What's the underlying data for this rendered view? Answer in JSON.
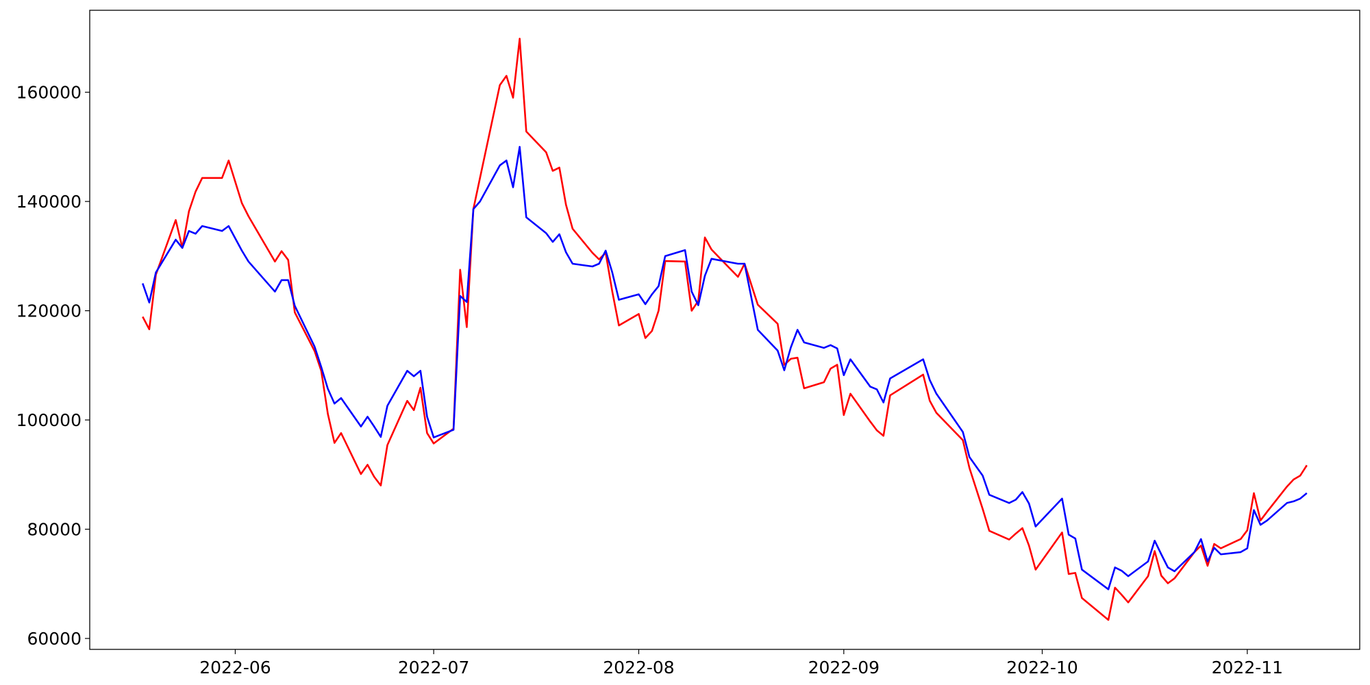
{
  "chart_data": {
    "type": "line",
    "x": [
      "2022-05-18",
      "2022-05-19",
      "2022-05-20",
      "2022-05-23",
      "2022-05-24",
      "2022-05-25",
      "2022-05-26",
      "2022-05-27",
      "2022-05-30",
      "2022-05-31",
      "2022-06-02",
      "2022-06-03",
      "2022-06-07",
      "2022-06-08",
      "2022-06-09",
      "2022-06-10",
      "2022-06-13",
      "2022-06-14",
      "2022-06-15",
      "2022-06-16",
      "2022-06-17",
      "2022-06-20",
      "2022-06-21",
      "2022-06-22",
      "2022-06-23",
      "2022-06-24",
      "2022-06-27",
      "2022-06-28",
      "2022-06-29",
      "2022-06-30",
      "2022-07-01",
      "2022-07-04",
      "2022-07-05",
      "2022-07-06",
      "2022-07-07",
      "2022-07-08",
      "2022-07-11",
      "2022-07-12",
      "2022-07-13",
      "2022-07-14",
      "2022-07-15",
      "2022-07-18",
      "2022-07-19",
      "2022-07-20",
      "2022-07-21",
      "2022-07-22",
      "2022-07-25",
      "2022-07-26",
      "2022-07-27",
      "2022-07-28",
      "2022-07-29",
      "2022-08-01",
      "2022-08-02",
      "2022-08-03",
      "2022-08-04",
      "2022-08-05",
      "2022-08-08",
      "2022-08-09",
      "2022-08-10",
      "2022-08-11",
      "2022-08-12",
      "2022-08-16",
      "2022-08-17",
      "2022-08-19",
      "2022-08-22",
      "2022-08-23",
      "2022-08-24",
      "2022-08-25",
      "2022-08-26",
      "2022-08-29",
      "2022-08-30",
      "2022-08-31",
      "2022-09-01",
      "2022-09-02",
      "2022-09-05",
      "2022-09-06",
      "2022-09-07",
      "2022-09-08",
      "2022-09-13",
      "2022-09-14",
      "2022-09-15",
      "2022-09-19",
      "2022-09-20",
      "2022-09-22",
      "2022-09-23",
      "2022-09-26",
      "2022-09-27",
      "2022-09-28",
      "2022-09-29",
      "2022-09-30",
      "2022-10-04",
      "2022-10-05",
      "2022-10-06",
      "2022-10-07",
      "2022-10-11",
      "2022-10-12",
      "2022-10-13",
      "2022-10-14",
      "2022-10-17",
      "2022-10-18",
      "2022-10-19",
      "2022-10-20",
      "2022-10-21",
      "2022-10-24",
      "2022-10-25",
      "2022-10-26",
      "2022-10-27",
      "2022-10-28",
      "2022-10-31",
      "2022-11-01",
      "2022-11-02",
      "2022-11-03",
      "2022-11-04",
      "2022-11-07",
      "2022-11-08",
      "2022-11-09",
      "2022-11-10"
    ],
    "series": [
      {
        "color": "red",
        "values": [
          118900,
          116600,
          126600,
          136600,
          131500,
          138200,
          141800,
          144300,
          144300,
          147500,
          139700,
          137300,
          129000,
          130900,
          129300,
          119700,
          112600,
          109000,
          101100,
          95800,
          97600,
          90100,
          91800,
          89600,
          88000,
          95400,
          103500,
          101800,
          105900,
          97600,
          95700,
          98400,
          127500,
          117000,
          138600,
          144300,
          161300,
          163000,
          159000,
          169800,
          152800,
          149000,
          145600,
          146200,
          139400,
          135000,
          130600,
          129400,
          130600,
          123500,
          117300,
          119400,
          115000,
          116300,
          120000,
          129100,
          129000,
          120000,
          121800,
          133400,
          131200,
          126200,
          128600,
          121100,
          117600,
          110100,
          111200,
          111400,
          105800,
          106900,
          109400,
          110100,
          100900,
          104800,
          99700,
          98100,
          97100,
          104500,
          108300,
          103500,
          101300,
          96300,
          91200,
          83700,
          79700,
          78100,
          79200,
          80200,
          77000,
          72600,
          79400,
          71800,
          72000,
          67400,
          63400,
          69300,
          68000,
          66600,
          71400,
          76000,
          71500,
          70100,
          71000,
          75800,
          77000,
          73300,
          77300,
          76500,
          78200,
          79800,
          86600,
          81600,
          83200,
          87800,
          89100,
          89800,
          91700
        ]
      },
      {
        "color": "blue",
        "values": [
          125000,
          121500,
          127000,
          133000,
          131500,
          134600,
          134100,
          135500,
          134600,
          135500,
          131000,
          129000,
          123500,
          125600,
          125600,
          120900,
          113400,
          109700,
          105700,
          103000,
          104000,
          98800,
          100600,
          98800,
          96900,
          102600,
          109000,
          108000,
          109000,
          100600,
          96800,
          98200,
          122700,
          121600,
          138600,
          140000,
          146600,
          147500,
          142600,
          150000,
          137100,
          134200,
          132600,
          134000,
          130700,
          128600,
          128100,
          128600,
          131000,
          127000,
          122000,
          123000,
          121200,
          123000,
          124500,
          130000,
          131100,
          123500,
          121000,
          126400,
          129500,
          128600,
          128600,
          116500,
          112700,
          109100,
          113300,
          116500,
          114200,
          113200,
          113700,
          113100,
          108200,
          111100,
          106100,
          105600,
          103200,
          107600,
          111100,
          107300,
          104800,
          97800,
          93200,
          89800,
          86300,
          84800,
          85400,
          86800,
          84700,
          80500,
          85600,
          79000,
          78300,
          72600,
          69000,
          73000,
          72400,
          71400,
          74100,
          77900,
          75400,
          73000,
          72300,
          75800,
          78200,
          74100,
          76600,
          75400,
          75800,
          76500,
          83500,
          80800,
          81600,
          84800,
          85100,
          85600,
          86600
        ]
      }
    ],
    "xlim": [
      "2022-05-10",
      "2022-11-18"
    ],
    "xticks": [
      {
        "value": "2022-06-01",
        "label": "2022-06"
      },
      {
        "value": "2022-07-01",
        "label": "2022-07"
      },
      {
        "value": "2022-08-01",
        "label": "2022-08"
      },
      {
        "value": "2022-09-01",
        "label": "2022-09"
      },
      {
        "value": "2022-10-01",
        "label": "2022-10"
      },
      {
        "value": "2022-11-01",
        "label": "2022-11"
      }
    ],
    "ylim": [
      58000,
      175000
    ],
    "yticks": [
      60000,
      80000,
      100000,
      120000,
      140000,
      160000
    ],
    "grid": false
  }
}
